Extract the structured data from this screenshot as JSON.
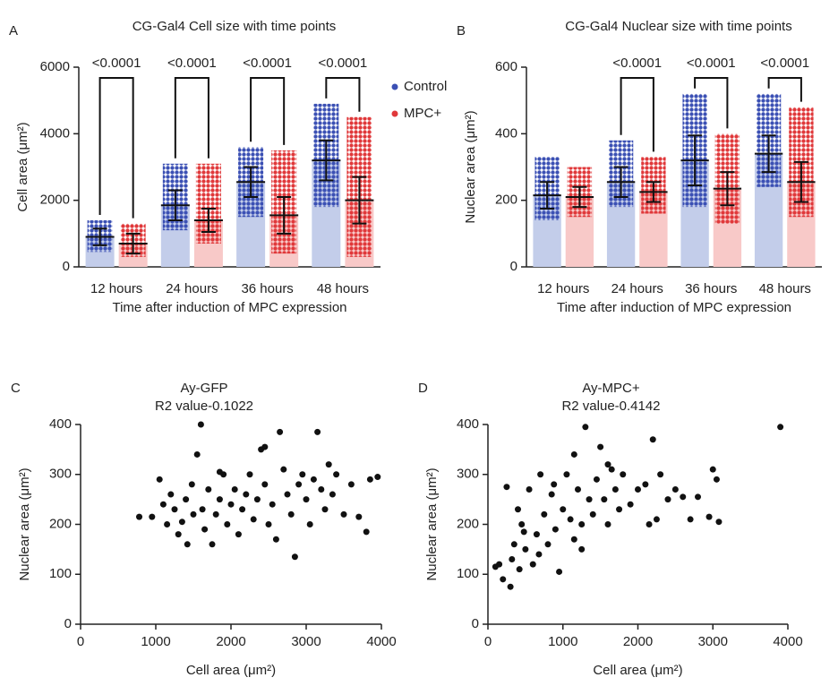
{
  "chart_data": [
    {
      "type": "bar",
      "panel": "A",
      "title": "CG-Gal4 Cell size with time points",
      "xlabel": "Time after induction of MPC expression",
      "ylabel": "Cell area (μm²)",
      "categories": [
        "12 hours",
        "24 hours",
        "36 hours",
        "48 hours"
      ],
      "ylim": [
        0,
        6000
      ],
      "yticks": [
        0,
        2000,
        4000,
        6000
      ],
      "legend": "right",
      "series": [
        {
          "name": "Control",
          "color": "#3b50b4",
          "bar_color": "#c3cdea",
          "values": [
            900,
            1850,
            2550,
            3200
          ],
          "errors": [
            250,
            450,
            450,
            600
          ],
          "ranges": [
            [
              450,
              1400
            ],
            [
              1100,
              3100
            ],
            [
              1500,
              3600
            ],
            [
              1800,
              4900
            ]
          ]
        },
        {
          "name": "MPC+",
          "color": "#e0383a",
          "bar_color": "#f8c9c8",
          "values": [
            700,
            1400,
            1550,
            2000
          ],
          "errors": [
            300,
            350,
            550,
            700
          ],
          "ranges": [
            [
              300,
              1300
            ],
            [
              700,
              3100
            ],
            [
              400,
              3500
            ],
            [
              300,
              4500
            ]
          ]
        }
      ],
      "comparisons": [
        {
          "category": 0,
          "label": "<0.0001"
        },
        {
          "category": 1,
          "label": "<0.0001"
        },
        {
          "category": 2,
          "label": "<0.0001"
        },
        {
          "category": 3,
          "label": "<0.0001"
        }
      ]
    },
    {
      "type": "bar",
      "panel": "B",
      "title": "CG-Gal4 Nuclear size with time points",
      "xlabel": "Time after induction of MPC expression",
      "ylabel": "Nuclear area (μm²)",
      "categories": [
        "12 hours",
        "24 hours",
        "36 hours",
        "48 hours"
      ],
      "ylim": [
        0,
        600
      ],
      "yticks": [
        0,
        200,
        400,
        600
      ],
      "series": [
        {
          "color": "#3b50b4",
          "bar_color": "#c3cdea",
          "values": [
            215,
            255,
            320,
            340
          ],
          "errors": [
            40,
            45,
            75,
            55
          ],
          "ranges": [
            [
              140,
              330
            ],
            [
              180,
              380
            ],
            [
              180,
              520
            ],
            [
              240,
              520
            ]
          ]
        },
        {
          "color": "#e0383a",
          "bar_color": "#f8c9c8",
          "values": [
            210,
            225,
            235,
            255
          ],
          "errors": [
            30,
            30,
            50,
            60
          ],
          "ranges": [
            [
              150,
              300
            ],
            [
              160,
              330
            ],
            [
              130,
              400
            ],
            [
              150,
              480
            ]
          ]
        }
      ],
      "comparisons": [
        {
          "category": 1,
          "label": "<0.0001"
        },
        {
          "category": 2,
          "label": "<0.0001"
        },
        {
          "category": 3,
          "label": "<0.0001"
        }
      ]
    },
    {
      "type": "scatter",
      "panel": "C",
      "title": "Ay-GFP",
      "subtitle": "R2 value-0.1022",
      "xlabel": "Cell area (μm²)",
      "ylabel": "Nuclear area (μm²)",
      "color": "#111111",
      "xlim": [
        0,
        4000
      ],
      "xticks": [
        0,
        1000,
        2000,
        3000,
        4000
      ],
      "ylim": [
        0,
        400
      ],
      "yticks": [
        0,
        100,
        200,
        300,
        400
      ],
      "x": [
        780,
        950,
        1050,
        1100,
        1150,
        1200,
        1250,
        1300,
        1350,
        1400,
        1420,
        1480,
        1500,
        1550,
        1600,
        1620,
        1650,
        1700,
        1750,
        1800,
        1850,
        1900,
        1950,
        2000,
        2050,
        2100,
        2150,
        2200,
        2250,
        2300,
        2350,
        2400,
        2450,
        2500,
        2550,
        2600,
        2650,
        2700,
        2750,
        2800,
        2850,
        2900,
        2950,
        3000,
        3050,
        3100,
        3150,
        3200,
        3250,
        3300,
        3350,
        3400,
        3500,
        3600,
        3700,
        3800,
        3850,
        3950,
        2450,
        1850
      ],
      "y": [
        215,
        215,
        290,
        240,
        200,
        260,
        230,
        180,
        205,
        250,
        160,
        280,
        220,
        340,
        400,
        230,
        190,
        270,
        160,
        220,
        250,
        300,
        200,
        240,
        270,
        180,
        230,
        260,
        300,
        210,
        250,
        350,
        280,
        200,
        240,
        170,
        385,
        310,
        260,
        220,
        135,
        280,
        300,
        250,
        200,
        290,
        385,
        270,
        230,
        320,
        260,
        300,
        220,
        280,
        215,
        185,
        290,
        295,
        355,
        305
      ]
    },
    {
      "type": "scatter",
      "panel": "D",
      "title": "Ay-MPC+",
      "subtitle": "R2 value-0.4142",
      "xlabel": "Cell area (μm²)",
      "ylabel": "Nuclear area (μm²)",
      "color": "#111111",
      "xlim": [
        0,
        4000
      ],
      "xticks": [
        0,
        1000,
        2000,
        3000,
        4000
      ],
      "ylim": [
        0,
        400
      ],
      "yticks": [
        0,
        100,
        200,
        300,
        400
      ],
      "x": [
        150,
        200,
        250,
        300,
        350,
        400,
        420,
        450,
        500,
        550,
        600,
        650,
        700,
        750,
        800,
        850,
        900,
        950,
        1000,
        1050,
        1100,
        1150,
        1200,
        1250,
        1300,
        1350,
        1400,
        1450,
        1500,
        1550,
        1600,
        1650,
        1700,
        1750,
        1800,
        1900,
        2000,
        2100,
        2200,
        2250,
        2300,
        2400,
        2500,
        2600,
        2700,
        2800,
        2950,
        3000,
        3050,
        3080,
        3900,
        100,
        320,
        480,
        680,
        880,
        1150,
        1600,
        2150,
        1250
      ],
      "y": [
        120,
        90,
        275,
        75,
        160,
        230,
        110,
        200,
        150,
        270,
        120,
        180,
        300,
        220,
        160,
        260,
        190,
        105,
        230,
        300,
        210,
        170,
        270,
        200,
        395,
        250,
        220,
        290,
        355,
        250,
        200,
        310,
        270,
        230,
        300,
        240,
        270,
        280,
        370,
        210,
        300,
        250,
        270,
        255,
        210,
        255,
        215,
        310,
        290,
        205,
        395,
        115,
        130,
        185,
        140,
        280,
        340,
        320,
        200,
        150
      ]
    }
  ]
}
